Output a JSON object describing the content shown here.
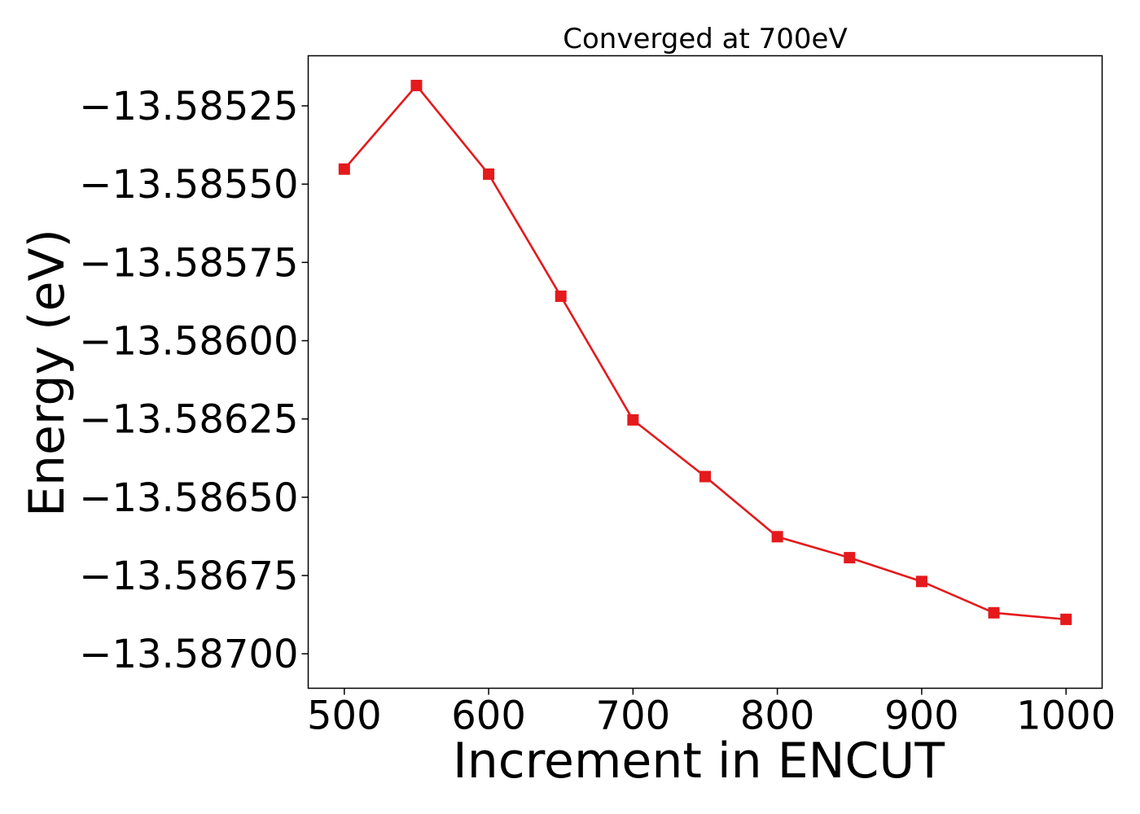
{
  "chart_data": {
    "type": "line",
    "title": "Converged at 700eV",
    "xlabel": "Increment in ENCUT",
    "ylabel": "Energy (eV)",
    "x": [
      500,
      550,
      600,
      650,
      700,
      750,
      800,
      850,
      900,
      950,
      1000
    ],
    "series": [
      {
        "values": [
          -13.585452,
          -13.585185,
          -13.585468,
          -13.585858,
          -13.586253,
          -13.586434,
          -13.586626,
          -13.586693,
          -13.586769,
          -13.586869,
          -13.58689
        ],
        "color": "#e41a1c",
        "marker": "square"
      }
    ],
    "xlim": [
      475,
      1025
    ],
    "ylim": [
      -13.58711,
      -13.58509
    ],
    "x_ticks": [
      500,
      600,
      700,
      800,
      900,
      1000
    ],
    "x_tick_labels": [
      "500",
      "600",
      "700",
      "800",
      "900",
      "1000"
    ],
    "y_ticks": [
      -13.58525,
      -13.5855,
      -13.58575,
      -13.586,
      -13.58625,
      -13.5865,
      -13.58675,
      -13.587
    ],
    "y_tick_labels": [
      "−13.58525",
      "−13.58550",
      "−13.58575",
      "−13.58600",
      "−13.58625",
      "−13.58650",
      "−13.58675",
      "−13.58700"
    ],
    "grid": false,
    "legend": false
  }
}
